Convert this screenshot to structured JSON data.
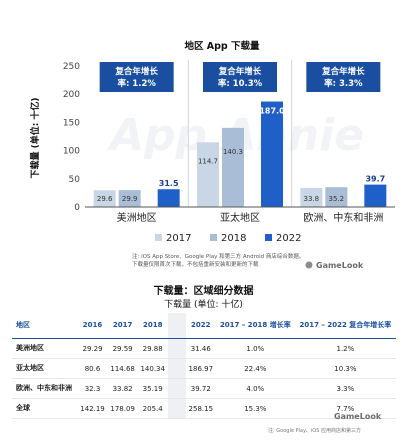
{
  "chart_data": [
    {
      "type": "bar",
      "title": "地区 App 下载量",
      "ylabel": "下载量 (单位: 十亿)",
      "ylim": [
        0,
        250
      ],
      "yticks": [
        0,
        50,
        100,
        150,
        200,
        250
      ],
      "categories": [
        "美洲地区",
        "亚太地区",
        "欧洲、中东和非洲"
      ],
      "series": [
        {
          "name": "2017",
          "values": [
            29.6,
            114.7,
            33.8
          ],
          "color": "#c9d6e6"
        },
        {
          "name": "2018",
          "values": [
            29.9,
            140.3,
            35.2
          ],
          "color": "#a9bdd6"
        },
        {
          "name": "2022",
          "values": [
            31.5,
            187.0,
            39.7
          ],
          "color": "#1f5fc8"
        }
      ],
      "cagr_labels": [
        "复合年增长率: 1.2%",
        "复合年增长率: 10.3%",
        "复合年增长率: 3.3%"
      ],
      "cagr_color": "#1a4ea0",
      "legend": [
        "2017",
        "2018",
        "2022"
      ],
      "legend_position": "bottom",
      "grid": false
    },
    {
      "type": "table",
      "title": "下载量：区域细分数据",
      "subtitle": "下载量 (单位: 十亿)",
      "columns": [
        "地区",
        "2016",
        "2017",
        "2018",
        "2022",
        "2017 – 2018 增长率",
        "2017 – 2022 复合年增长率"
      ],
      "rows": [
        [
          "美洲地区",
          "29.29",
          "29.59",
          "29.88",
          "31.46",
          "1.0%",
          "1.2%"
        ],
        [
          "亚太地区",
          "80.6",
          "114.68",
          "140.34",
          "186.97",
          "22.4%",
          "10.3%"
        ],
        [
          "欧洲、中东和非洲",
          "32.3",
          "33.82",
          "35.19",
          "39.72",
          "4.0%",
          "3.3%"
        ],
        [
          "全球",
          "142.19",
          "178.09",
          "205.4",
          "258.15",
          "15.3%",
          "7.7%"
        ]
      ]
    }
  ],
  "notes": {
    "chart_source": "注: iOS App Store、Google Play 和第三方 Android 商店综合数据。",
    "chart_source_2": "下载量仅限首次下载，不包括重新安装和更新的下载",
    "table_source": "注: Google Play、iOS 应用商店和第三方",
    "watermark": "App Annie",
    "brand": "GameLook"
  }
}
